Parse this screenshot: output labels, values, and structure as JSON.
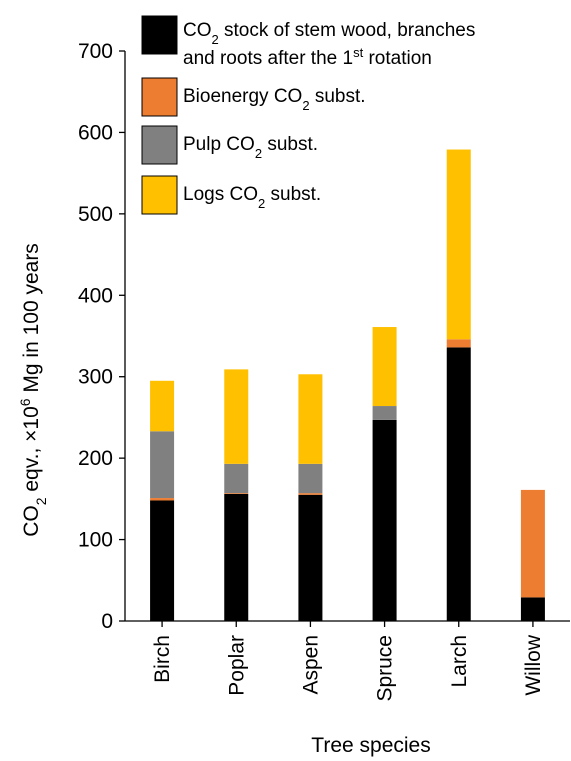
{
  "chart_data": {
    "type": "bar",
    "stacked": true,
    "categories": [
      "Birch",
      "Poplar",
      "Aspen",
      "Spruce",
      "Larch",
      "Willow"
    ],
    "series": [
      {
        "name": "CO2 stock of stem wood, branches and roots after the 1st rotation",
        "color": "#000000",
        "values": [
          148,
          156,
          155,
          247,
          336,
          29
        ]
      },
      {
        "name": "Bioenergy CO2 subst.",
        "color": "#ED7D31",
        "values": [
          3,
          1,
          2,
          0,
          10,
          132
        ]
      },
      {
        "name": "Pulp CO2 subst.",
        "color": "#808080",
        "values": [
          82,
          36,
          36,
          17,
          0,
          0
        ]
      },
      {
        "name": "Logs CO2 subst.",
        "color": "#FFC000",
        "values": [
          62,
          116,
          110,
          97,
          233,
          0
        ]
      }
    ],
    "xlabel": "Tree species",
    "ylabel": "CO2 eqv., ×10^6 Mg in 100 years",
    "ylim": [
      0,
      700
    ],
    "yticks": [
      0,
      100,
      200,
      300,
      400,
      500,
      600,
      700
    ],
    "grid": false,
    "legend_position": "top-right"
  },
  "legend": [
    {
      "line1_a": "CO",
      "line1_sub": "2",
      "line1_b": " stock of stem wood, branches",
      "line2_a": "and roots after  the 1",
      "line2_sup": "st",
      "line2_b": " rotation",
      "color": "#000000"
    },
    {
      "a": "Bioenergy CO",
      "sub": "2",
      "b": " subst.",
      "color": "#ED7D31"
    },
    {
      "a": "Pulp CO",
      "sub": "2",
      "b": " subst.",
      "color": "#808080"
    },
    {
      "a": "Logs CO",
      "sub": "2",
      "b": " subst.",
      "color": "#FFC000"
    }
  ],
  "ylabel_parts": {
    "a": "CO",
    "sub": "2",
    "b": " eqv., ×10",
    "sup": "6",
    "c": " Mg in 100 years"
  },
  "xlabel_text": "Tree species"
}
